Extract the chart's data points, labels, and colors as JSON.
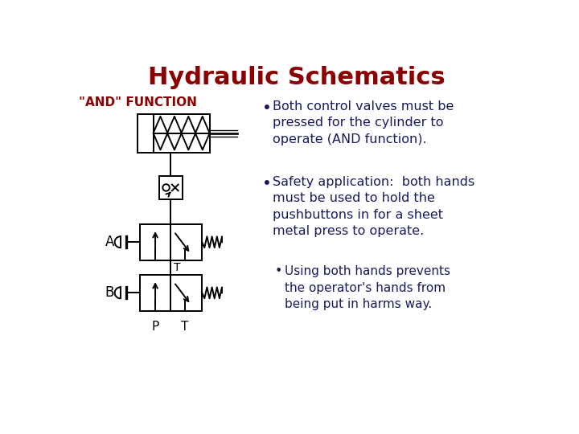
{
  "title": "Hydraulic Schematics",
  "title_color": "#8B0000",
  "title_fontsize": 22,
  "and_label": "\"AND\" FUNCTION",
  "and_label_color": "#8B0000",
  "and_label_fontsize": 11,
  "label_A": "A",
  "label_B": "B",
  "label_P": "P",
  "label_T": "T",
  "label_T_between": "T",
  "bullet1": "Both control valves must be\npressed for the cylinder to\noperate (AND function).",
  "bullet2": "Safety application:  both hands\nmust be used to hold the\npushbuttons in for a sheet\nmetal press to operate.",
  "bullet3": "Using both hands prevents\nthe operator's hands from\nbeing put in harms way.",
  "text_color": "#1a1a5e",
  "text_fontsize": 11.5,
  "sub_bullet_fontsize": 11,
  "background_color": "#ffffff",
  "line_color": "#000000",
  "line_width": 1.4
}
